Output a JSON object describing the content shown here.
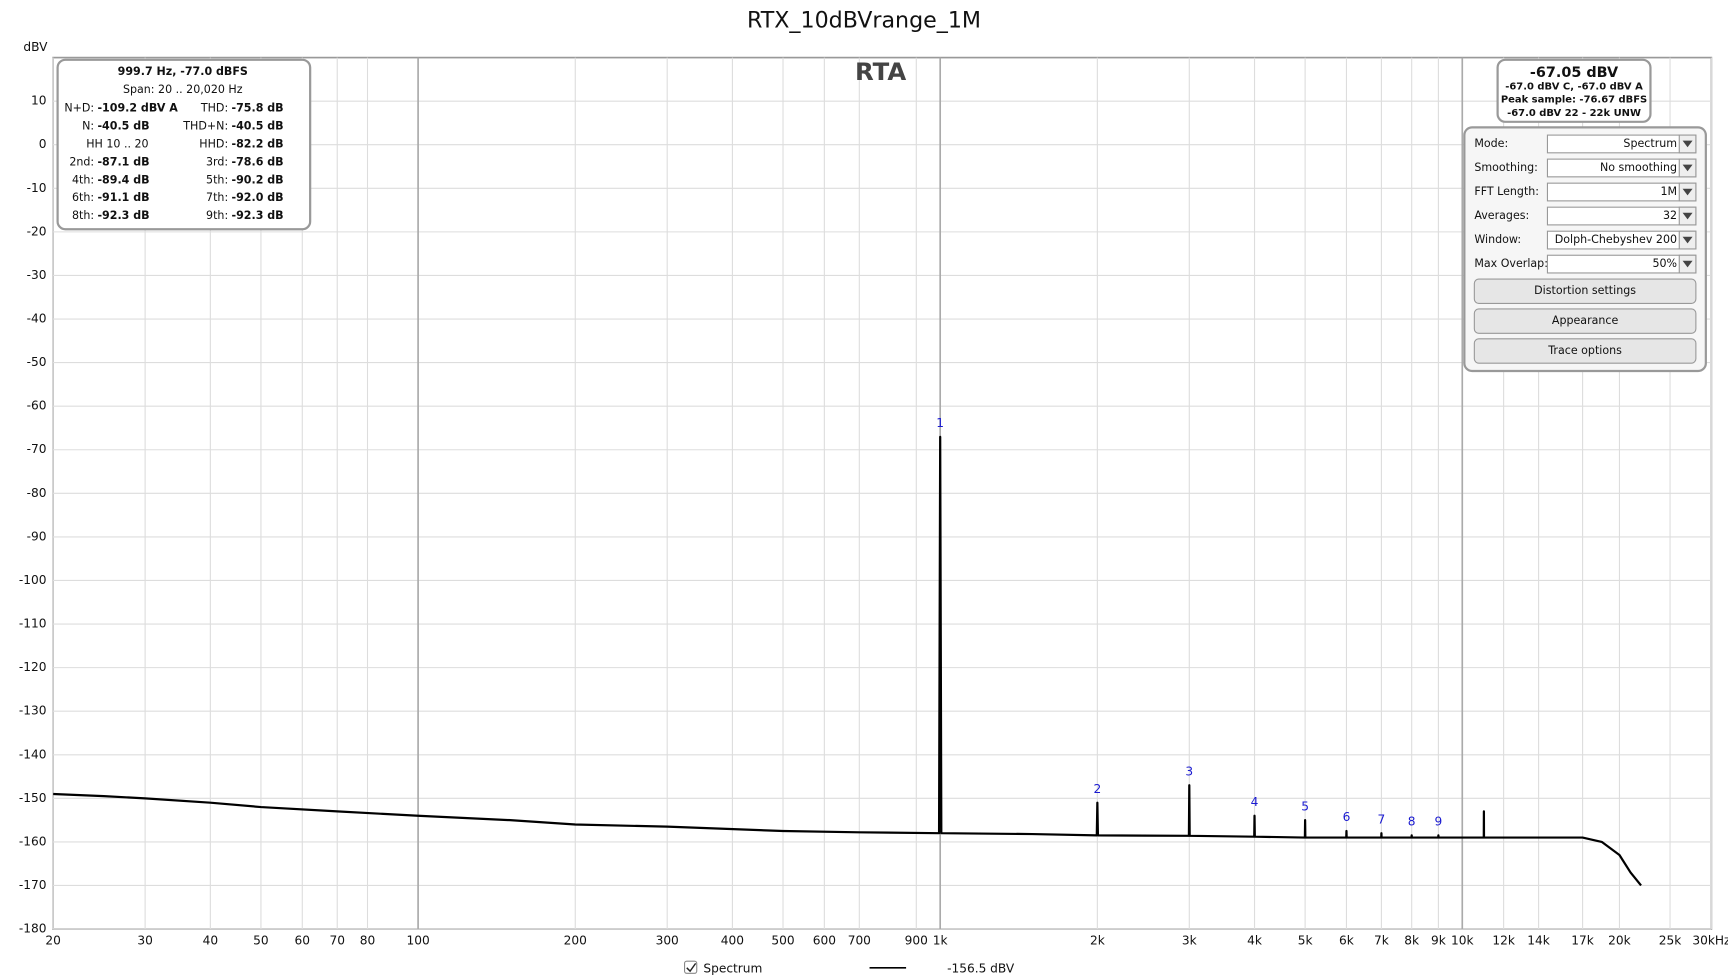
{
  "chart_data": {
    "type": "line",
    "title": "RTX_10dBVrange_1M",
    "watermark": "RTA",
    "y_label": "dBV",
    "xscale": "log",
    "grid": true,
    "xlim": [
      20,
      30000
    ],
    "ylim": [
      -180,
      20
    ],
    "yticks": [
      10,
      0,
      -10,
      -20,
      -30,
      -40,
      -50,
      -60,
      -70,
      -80,
      -90,
      -100,
      -110,
      -120,
      -130,
      -140,
      -150,
      -160,
      -170,
      -180
    ],
    "xticks": [
      20,
      30,
      40,
      50,
      60,
      70,
      80,
      100,
      200,
      300,
      400,
      500,
      600,
      700,
      900,
      {
        "value": 1000,
        "label": "1k"
      },
      {
        "value": 2000,
        "label": "2k"
      },
      {
        "value": 3000,
        "label": "3k"
      },
      {
        "value": 4000,
        "label": "4k"
      },
      {
        "value": 5000,
        "label": "5k"
      },
      {
        "value": 6000,
        "label": "6k"
      },
      {
        "value": 7000,
        "label": "7k"
      },
      {
        "value": 8000,
        "label": "8k"
      },
      {
        "value": 9000,
        "label": "9k"
      },
      {
        "value": 10000,
        "label": "10k"
      },
      {
        "value": 12000,
        "label": "12k"
      },
      {
        "value": 14000,
        "label": "14k"
      },
      {
        "value": 17000,
        "label": "17k"
      },
      {
        "value": 20000,
        "label": "20k"
      },
      {
        "value": 25000,
        "label": "25k"
      },
      {
        "value": 30000,
        "label": "30kHz"
      }
    ],
    "x": [
      20,
      25,
      30,
      40,
      50,
      70,
      100,
      150,
      200,
      300,
      500,
      700,
      995,
      1000,
      1005,
      1500,
      1995,
      2000,
      2005,
      2995,
      3000,
      3005,
      3995,
      4000,
      4005,
      4995,
      5000,
      5005,
      5995,
      6000,
      6005,
      6995,
      7000,
      7005,
      7995,
      8000,
      8005,
      8995,
      9000,
      9005,
      10000,
      10995,
      11000,
      11005,
      14000,
      17000,
      18500,
      20000,
      21000,
      22000
    ],
    "series": [
      {
        "name": "Spectrum",
        "color": "#000000",
        "values": [
          -149,
          -149.5,
          -150,
          -151,
          -152,
          -153,
          -154,
          -155,
          -156,
          -156.5,
          -157.5,
          -157.8,
          -158,
          -67.05,
          -158,
          -158.2,
          -158.5,
          -151,
          -158.5,
          -158.6,
          -147,
          -158.6,
          -158.8,
          -154,
          -158.8,
          -159,
          -155,
          -159,
          -159,
          -157.5,
          -159,
          -159,
          -158,
          -159,
          -159,
          -158.5,
          -159,
          -159,
          -158.5,
          -159,
          -159,
          -159,
          -153,
          -159,
          -159,
          -159,
          -160,
          -163,
          -167,
          -170
        ]
      }
    ],
    "legend_value": "-156.5 dBV",
    "harmonic_markers": [
      {
        "label": "1",
        "x": 1000
      },
      {
        "label": "2",
        "x": 2000
      },
      {
        "label": "3",
        "x": 3000
      },
      {
        "label": "4",
        "x": 4000
      },
      {
        "label": "5",
        "x": 5000
      },
      {
        "label": "6",
        "x": 6000
      },
      {
        "label": "7",
        "x": 7000
      },
      {
        "label": "8",
        "x": 8000
      },
      {
        "label": "9",
        "x": 9000
      }
    ]
  },
  "info_box": {
    "header": [
      "999.7 Hz, -77.0 dBFS",
      "Span: 20 .. 20,020 Hz"
    ],
    "items": [
      {
        "label": "N+D:",
        "value": "-109.2 dBV A"
      },
      {
        "label": "THD:",
        "value": "-75.8 dB"
      },
      {
        "label": "N:",
        "value": "-40.5 dB"
      },
      {
        "label": "THD+N:",
        "value": "-40.5 dB"
      },
      {
        "label": "HH 10 .. 20"
      },
      {
        "label": "HHD:",
        "value": "-82.2 dB"
      },
      {
        "label": "2nd:",
        "value": "-87.1 dB"
      },
      {
        "label": "3rd:",
        "value": "-78.6 dB"
      },
      {
        "label": "4th:",
        "value": "-89.4 dB"
      },
      {
        "label": "5th:",
        "value": "-90.2 dB"
      },
      {
        "label": "6th:",
        "value": "-91.1 dB"
      },
      {
        "label": "7th:",
        "value": "-92.0 dB"
      },
      {
        "label": "8th:",
        "value": "-92.3 dB"
      },
      {
        "label": "9th:",
        "value": "-92.3 dB"
      }
    ]
  },
  "level_box": {
    "main": "-67.05 dBV",
    "lines": [
      "-67.0 dBV C, -67.0 dBV A",
      "Peak sample: -76.67 dBFS",
      "-67.0 dBV 22 - 22k UNW"
    ]
  },
  "controls": {
    "fields": [
      {
        "label": "Mode:",
        "value": "Spectrum"
      },
      {
        "label": "Smoothing:",
        "value": "No  smoothing"
      },
      {
        "label": "FFT Length:",
        "value": "1M"
      },
      {
        "label": "Averages:",
        "value": "32"
      },
      {
        "label": "Window:",
        "value": "Dolph-Chebyshev 200"
      },
      {
        "label": "Max Overlap:",
        "value": "50%"
      }
    ],
    "buttons": [
      "Distortion settings",
      "Appearance",
      "Trace options"
    ]
  }
}
